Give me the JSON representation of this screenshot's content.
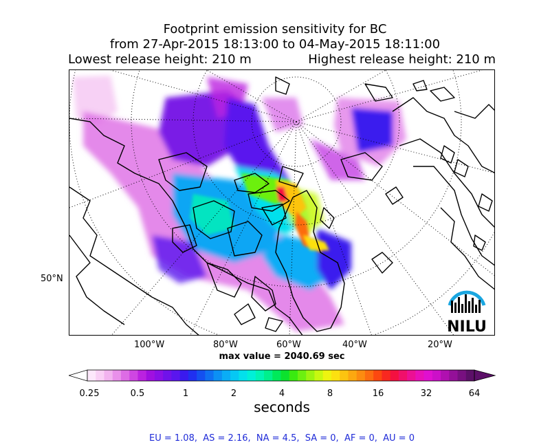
{
  "title": {
    "line1": "Footprint emission sensitivity for BC",
    "line2": "from 27-Apr-2015 18:13:00 to 04-May-2015 18:11:00",
    "lowest_release": "Lowest release height: 210 m",
    "highest_release": "Highest release height: 210 m"
  },
  "map": {
    "lat_label": "50°N",
    "lon_labels": [
      "100°W",
      "80°W",
      "60°W",
      "40°W",
      "20°W"
    ],
    "logo_text": "NILU",
    "max_value": "max value = 2040.69 sec"
  },
  "colorbar": {
    "tick_labels": [
      "0.25",
      "0.5",
      "1",
      "2",
      "4",
      "8",
      "16",
      "32",
      "64"
    ],
    "unit": "seconds",
    "colors": [
      "#fde8fb",
      "#f9d0f5",
      "#f2b3ef",
      "#e990ea",
      "#dd6ce5",
      "#cf46e2",
      "#bb22e0",
      "#a010e0",
      "#8a10e6",
      "#7012ea",
      "#5a16ee",
      "#3a1aee",
      "#2030f0",
      "#1450f0",
      "#0f70f2",
      "#0c90f4",
      "#0aadf6",
      "#06c8f4",
      "#03e0ec",
      "#00f0d8",
      "#00f4b4",
      "#00f08c",
      "#00ea5a",
      "#0ce22e",
      "#3aea10",
      "#6cf010",
      "#9cf410",
      "#c8f810",
      "#eef410",
      "#fce010",
      "#fcc410",
      "#fca810",
      "#fc8c10",
      "#fc6c10",
      "#fc4810",
      "#f82820",
      "#f41040",
      "#f0106a",
      "#ec1094",
      "#e810b8",
      "#e010d0",
      "#cc10c8",
      "#b010b0",
      "#941098",
      "#781080",
      "#5c1068"
    ]
  },
  "summary": "EU = 1.08,  AS = 2.16,  NA = 4.5,  SA = 0,  AF = 0,  AU = 0"
}
